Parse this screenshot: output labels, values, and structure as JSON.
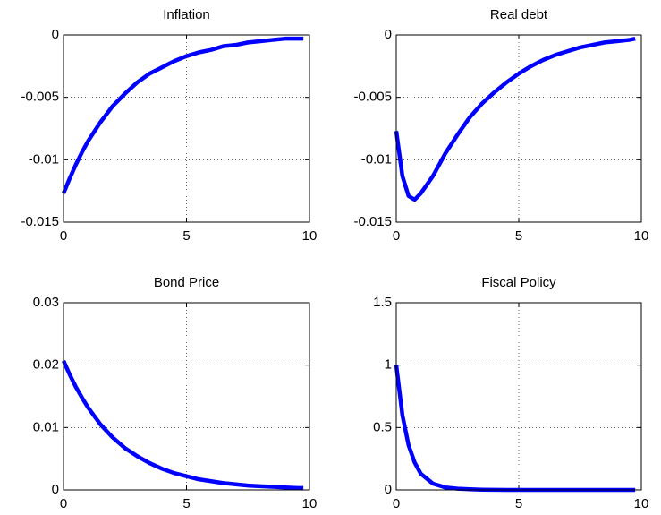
{
  "chart_data": [
    {
      "type": "line",
      "title": "Inflation",
      "x": [
        0,
        0.25,
        0.5,
        0.75,
        1,
        1.5,
        2,
        2.5,
        3,
        3.5,
        4,
        4.5,
        5,
        5.5,
        6,
        6.5,
        7,
        7.5,
        8,
        8.5,
        9,
        9.5,
        9.75
      ],
      "values": [
        -0.0127,
        -0.0115,
        -0.0104,
        -0.0094,
        -0.0085,
        -0.007,
        -0.0057,
        -0.0047,
        -0.0038,
        -0.0031,
        -0.0026,
        -0.0021,
        -0.0017,
        -0.0014,
        -0.0012,
        -0.0009,
        -0.0008,
        -0.0006,
        -0.0005,
        -0.0004,
        -0.0003,
        -0.0003,
        -0.0003
      ],
      "color": "#0000ff",
      "xlim": [
        0,
        10
      ],
      "xticks": [
        0,
        5,
        10
      ],
      "ylim": [
        -0.015,
        0
      ],
      "yticks": [
        -0.015,
        -0.01,
        -0.005,
        0
      ],
      "grid": true
    },
    {
      "type": "line",
      "title": "Real debt",
      "x": [
        0,
        0.25,
        0.5,
        0.75,
        1,
        1.5,
        2,
        2.5,
        3,
        3.5,
        4,
        4.5,
        5,
        5.5,
        6,
        6.5,
        7,
        7.5,
        8,
        8.5,
        9,
        9.5,
        9.75
      ],
      "values": [
        -0.0077,
        -0.0113,
        -0.0129,
        -0.0132,
        -0.0127,
        -0.0113,
        -0.0095,
        -0.008,
        -0.0066,
        -0.0055,
        -0.0046,
        -0.0038,
        -0.0031,
        -0.0025,
        -0.002,
        -0.0016,
        -0.0013,
        -0.001,
        -0.0008,
        -0.0006,
        -0.0005,
        -0.0004,
        -0.0003
      ],
      "color": "#0000ff",
      "xlim": [
        0,
        10
      ],
      "xticks": [
        0,
        5,
        10
      ],
      "ylim": [
        -0.015,
        0
      ],
      "yticks": [
        -0.015,
        -0.01,
        -0.005,
        0
      ],
      "grid": true
    },
    {
      "type": "line",
      "title": "Bond Price",
      "x": [
        0,
        0.25,
        0.5,
        0.75,
        1,
        1.5,
        2,
        2.5,
        3,
        3.5,
        4,
        4.5,
        5,
        5.5,
        6,
        6.5,
        7,
        7.5,
        8,
        8.5,
        9,
        9.5,
        9.75
      ],
      "values": [
        0.0207,
        0.0185,
        0.0165,
        0.0148,
        0.0132,
        0.0105,
        0.0084,
        0.0067,
        0.0054,
        0.0043,
        0.0034,
        0.0027,
        0.0022,
        0.0017,
        0.0014,
        0.0011,
        0.0009,
        0.0007,
        0.0006,
        0.0005,
        0.0004,
        0.0003,
        0.0003
      ],
      "color": "#0000ff",
      "xlim": [
        0,
        10
      ],
      "xticks": [
        0,
        5,
        10
      ],
      "ylim": [
        0,
        0.03
      ],
      "yticks": [
        0,
        0.01,
        0.02,
        0.03
      ],
      "grid": true
    },
    {
      "type": "line",
      "title": "Fiscal Policy",
      "x": [
        0,
        0.25,
        0.5,
        0.75,
        1,
        1.5,
        2,
        2.5,
        3,
        3.5,
        4,
        4.5,
        5,
        5.5,
        6,
        6.5,
        7,
        7.5,
        8,
        8.5,
        9,
        9.5,
        9.75
      ],
      "values": [
        1,
        0.6,
        0.36,
        0.22,
        0.13,
        0.05,
        0.02,
        0.01,
        0.005,
        0.002,
        0.001,
        0,
        0,
        0,
        0,
        0,
        0,
        0,
        0,
        0,
        0,
        0,
        0
      ],
      "color": "#0000ff",
      "xlim": [
        0,
        10
      ],
      "xticks": [
        0,
        5,
        10
      ],
      "ylim": [
        0,
        1.5
      ],
      "yticks": [
        0,
        0.5,
        1,
        1.5
      ],
      "grid": true
    }
  ]
}
